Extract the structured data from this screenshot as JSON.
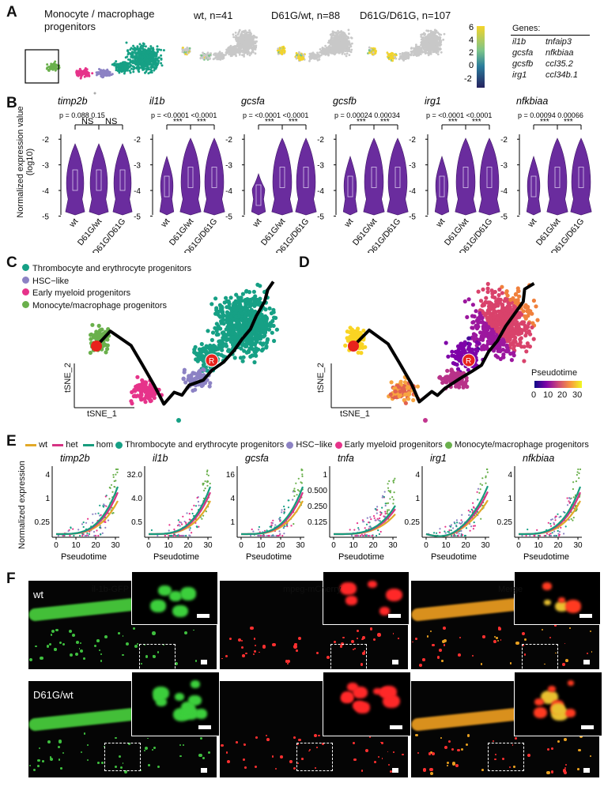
{
  "panelA": {
    "letter": "A",
    "overview_title": "Monocyte / macrophage progenitors",
    "groups": [
      {
        "label": "wt, n=41"
      },
      {
        "label": "D61G/wt, n=88"
      },
      {
        "label": "D61G/D61G, n=107"
      }
    ],
    "colorbar_ticks": [
      "6",
      "4",
      "2",
      "0",
      "-2"
    ],
    "genes_title": "Genes:",
    "genes": [
      [
        "il1b",
        "tnfaip3"
      ],
      [
        "gcsfa",
        "nfkbiaa"
      ],
      [
        "gcsfb",
        "ccl35.2"
      ],
      [
        "irg1",
        "ccl34b.1"
      ]
    ]
  },
  "panelB": {
    "letter": "B",
    "ylabel": "Normalized expression value (log10)",
    "yticks": [
      "-2",
      "-3",
      "-4",
      "-5"
    ],
    "categories": [
      "wt",
      "D61G/wt",
      "D61G/D61G"
    ],
    "genes": [
      {
        "name": "timp2b",
        "p1": "0.088",
        "p2": "0.15",
        "sig1": "NS",
        "sig2": "NS"
      },
      {
        "name": "il1b",
        "p1": "<0.0001",
        "p2": "<0.0001",
        "sig1": "***",
        "sig2": "***"
      },
      {
        "name": "gcsfa",
        "p1": "<0.0001",
        "p2": "<0.0001",
        "sig1": "***",
        "sig2": "***"
      },
      {
        "name": "gcsfb",
        "p1": "0.00024",
        "p2": "0.00034",
        "sig1": "***",
        "sig2": "***"
      },
      {
        "name": "irg1",
        "p1": "<0.0001",
        "p2": "<0.0001",
        "sig1": "***",
        "sig2": "***"
      },
      {
        "name": "nfkbiaa",
        "p1": "0.00094",
        "p2": "0.00066",
        "sig1": "***",
        "sig2": "***"
      }
    ],
    "p_prefix": "p ="
  },
  "panelC": {
    "letter": "C",
    "legend": [
      {
        "label": "Thrombocyte and erythrocyte progenitors",
        "color": "#16a085"
      },
      {
        "label": "HSC−like",
        "color": "#8c82c4"
      },
      {
        "label": "Early myeloid progenitors",
        "color": "#e6338a"
      },
      {
        "label": "Monocyte/macrophage progenitors",
        "color": "#6ab04c"
      }
    ],
    "xlabel": "tSNE_1",
    "ylabel": "tSNE_2",
    "root": "R"
  },
  "panelD": {
    "letter": "D",
    "xlabel": "tSNE_1",
    "ylabel": "tSNE_2",
    "root": "R",
    "colorbar_title": "Pseudotime",
    "colorbar_ticks": [
      "0",
      "10",
      "20",
      "30"
    ]
  },
  "panelE": {
    "letter": "E",
    "legend": [
      {
        "label": "wt",
        "color": "#e2a929",
        "type": "line"
      },
      {
        "label": "het",
        "color": "#d63384",
        "type": "line"
      },
      {
        "label": "hom",
        "color": "#179c7d",
        "type": "line"
      },
      {
        "label": "Thrombocyte and erythrocyte progenitors",
        "color": "#16a085",
        "type": "dot"
      },
      {
        "label": "HSC−like",
        "color": "#8c82c4",
        "type": "dot"
      },
      {
        "label": "Early myeloid progenitors",
        "color": "#e6338a",
        "type": "dot"
      },
      {
        "label": "Monocyte/macrophage progenitors",
        "color": "#6ab04c",
        "type": "dot"
      }
    ],
    "ylabel": "Normalized expression",
    "xlabel": "Pseudotime",
    "xticks": [
      "0",
      "10",
      "20",
      "30"
    ],
    "genes": [
      {
        "name": "timp2b",
        "yticks": [
          "4",
          "1",
          "0.25"
        ]
      },
      {
        "name": "il1b",
        "yticks": [
          "32.0",
          "4.0",
          "0.5"
        ]
      },
      {
        "name": "gcsfa",
        "yticks": [
          "16",
          "4",
          "1"
        ]
      },
      {
        "name": "tnfa",
        "yticks": [
          "1",
          "0.500",
          "0.250",
          "0.125"
        ]
      },
      {
        "name": "irg1",
        "yticks": [
          "4",
          "1",
          "0.25"
        ]
      },
      {
        "name": "nfkbiaa",
        "yticks": [
          "4",
          "1",
          "0.25"
        ]
      }
    ]
  },
  "panelF": {
    "letter": "F",
    "channels": [
      "il-1b-GFP",
      "mpeg-mCherry",
      "Merge"
    ],
    "rows": [
      "wt",
      "D61G/wt"
    ]
  }
}
